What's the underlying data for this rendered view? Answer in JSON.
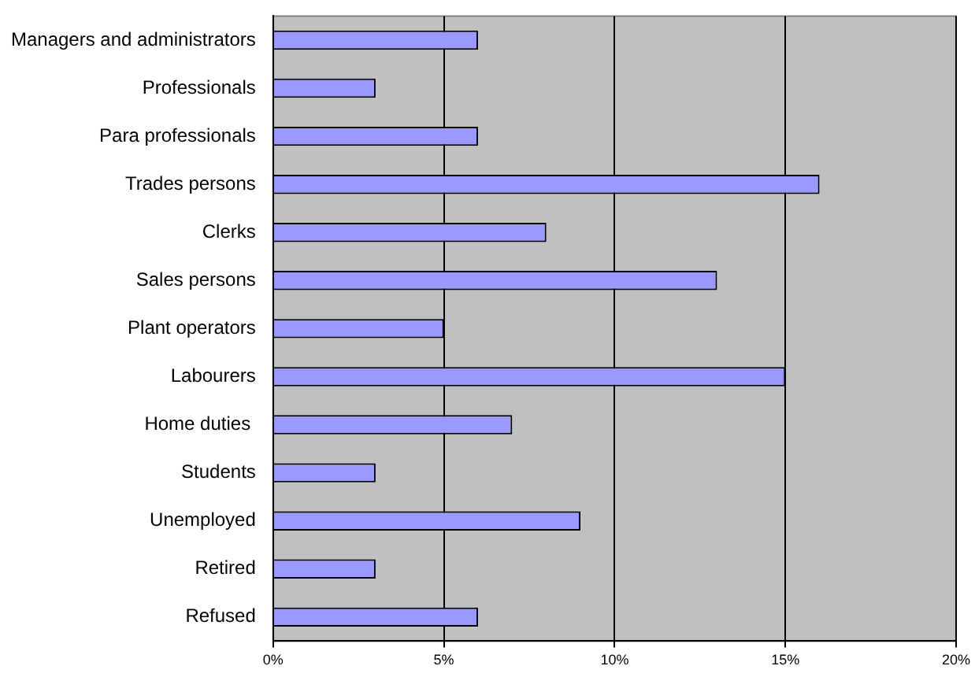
{
  "chart_data": {
    "type": "bar",
    "orientation": "horizontal",
    "categories": [
      "Managers and administrators",
      "Professionals",
      "Para professionals",
      "Trades persons",
      "Clerks",
      "Sales persons",
      "Plant operators",
      "Labourers",
      "Home duties ",
      "Students",
      "Unemployed",
      "Retired",
      "Refused"
    ],
    "values": [
      6,
      3,
      6,
      16,
      8,
      13,
      5,
      15,
      7,
      3,
      9,
      3,
      6
    ],
    "color": "#9999ff",
    "xlim": [
      0,
      20
    ],
    "xticks": [
      {
        "value": 0,
        "label": "0%"
      },
      {
        "value": 5,
        "label": "5%"
      },
      {
        "value": 10,
        "label": "10%"
      },
      {
        "value": 15,
        "label": "15%"
      },
      {
        "value": 20,
        "label": "20%"
      }
    ],
    "grid": "x",
    "legend": false
  }
}
